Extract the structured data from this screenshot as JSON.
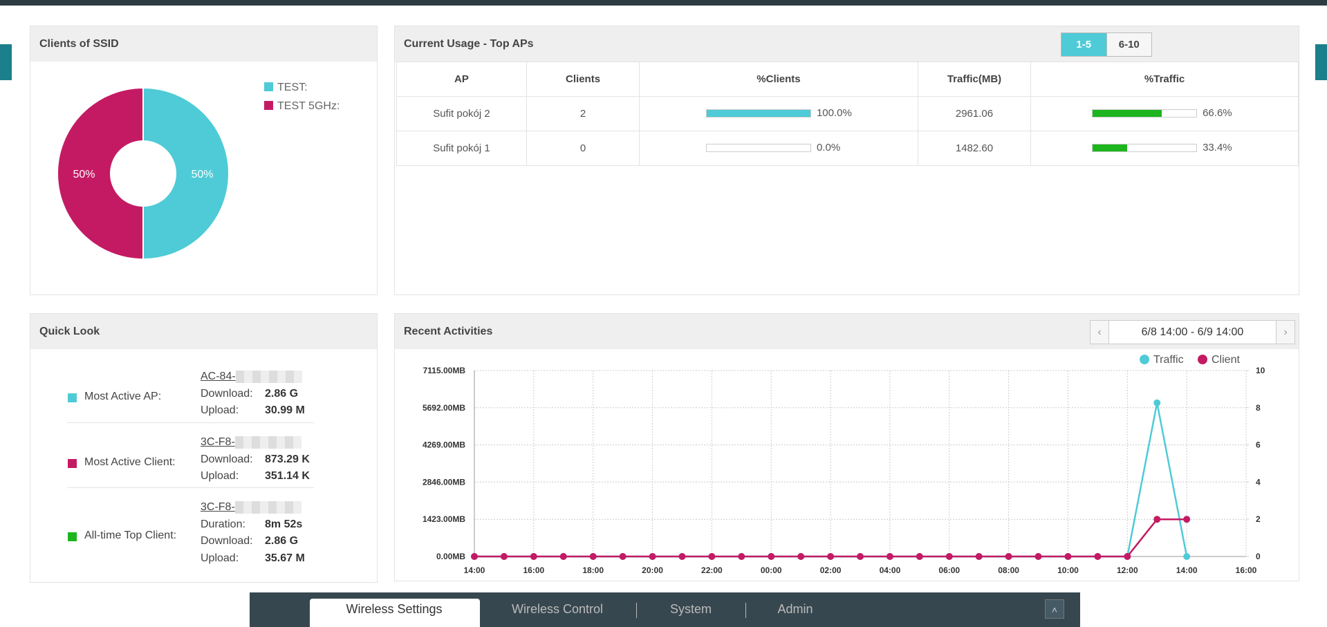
{
  "clients_of_ssid": {
    "title": "Clients of SSID",
    "chart_data": {
      "type": "pie",
      "categories": [
        "TEST:",
        "TEST 5GHz:"
      ],
      "values": [
        1,
        1
      ],
      "value_labels": [
        "50%",
        "50%"
      ],
      "colors": [
        "#4ecbd6",
        "#c41a64"
      ]
    }
  },
  "top_aps": {
    "title": "Current Usage - Top APs",
    "pages": [
      "1-5",
      "6-10"
    ],
    "columns": [
      "AP",
      "Clients",
      "%Clients",
      "Traffic(MB)",
      "%Traffic"
    ],
    "rows": [
      {
        "ap": "Sufit pokój 2",
        "clients": 2,
        "clients_pct": {
          "value": 100,
          "label": "100.0%"
        },
        "traffic": "2961.06",
        "traffic_pct": {
          "value": 66.6,
          "label": "66.6%"
        }
      },
      {
        "ap": "Sufit pokój 1",
        "clients": 0,
        "clients_pct": {
          "value": 0,
          "label": "0.0%"
        },
        "traffic": "1482.60",
        "traffic_pct": {
          "value": 33.4,
          "label": "33.4%"
        }
      }
    ]
  },
  "quick_look": {
    "title": "Quick Look",
    "items": [
      {
        "label": "Most Active AP:",
        "color": "#4ecbd6",
        "mac": "AC-84-",
        "details": [
          [
            "Download:",
            "2.86 G"
          ],
          [
            "Upload:",
            "30.99 M"
          ]
        ]
      },
      {
        "label": "Most Active Client:",
        "color": "#c41a64",
        "mac": "3C-F8-",
        "details": [
          [
            "Download:",
            "873.29 K"
          ],
          [
            "Upload:",
            "351.14 K"
          ]
        ]
      },
      {
        "label": "All-time Top Client:",
        "color": "#1db51d",
        "mac": "3C-F8-",
        "details": [
          [
            "Duration:",
            "8m 52s"
          ],
          [
            "Download:",
            "2.86 G"
          ],
          [
            "Upload:",
            "35.67 M"
          ]
        ]
      }
    ]
  },
  "recent_activities": {
    "title": "Recent Activities",
    "range": "6/8 14:00 - 6/9 14:00",
    "chart_data": {
      "type": "line",
      "categories": [
        "14:00",
        null,
        "16:00",
        null,
        "18:00",
        null,
        "20:00",
        null,
        "22:00",
        null,
        "00:00",
        null,
        "02:00",
        null,
        "04:00",
        null,
        "06:00",
        null,
        "08:00",
        null,
        "10:00",
        null,
        "12:00",
        null,
        "14:00",
        null,
        "16:00"
      ],
      "series": [
        {
          "name": "Traffic",
          "color": "#4ecbd6",
          "values": [
            0,
            0,
            0,
            0,
            0,
            0,
            0,
            0,
            0,
            0,
            0,
            0,
            0,
            0,
            0,
            0,
            0,
            0,
            0,
            0,
            0,
            0,
            0,
            5880,
            0,
            null,
            null
          ]
        },
        {
          "name": "Client",
          "color": "#c41a64",
          "axis": "y2",
          "values": [
            0,
            0,
            0,
            0,
            0,
            0,
            0,
            0,
            0,
            0,
            0,
            0,
            0,
            0,
            0,
            0,
            0,
            0,
            0,
            0,
            0,
            0,
            0,
            2,
            2,
            null,
            null
          ]
        }
      ],
      "ylim": [
        0,
        7115
      ],
      "yticks": [
        {
          "value": 0,
          "label": "0.00MB"
        },
        {
          "value": 1423,
          "label": "1423.00MB"
        },
        {
          "value": 2846,
          "label": "2846.00MB"
        },
        {
          "value": 4269,
          "label": "4269.00MB"
        },
        {
          "value": 5692,
          "label": "5692.00MB"
        },
        {
          "value": 7115,
          "label": "7115.00MB"
        }
      ],
      "y2lim": [
        0,
        10
      ],
      "y2ticks": [
        0,
        2,
        4,
        6,
        8,
        10
      ],
      "grid": true
    }
  },
  "nav": {
    "tabs": [
      "Wireless Settings",
      "Wireless Control",
      "System",
      "Admin"
    ]
  }
}
